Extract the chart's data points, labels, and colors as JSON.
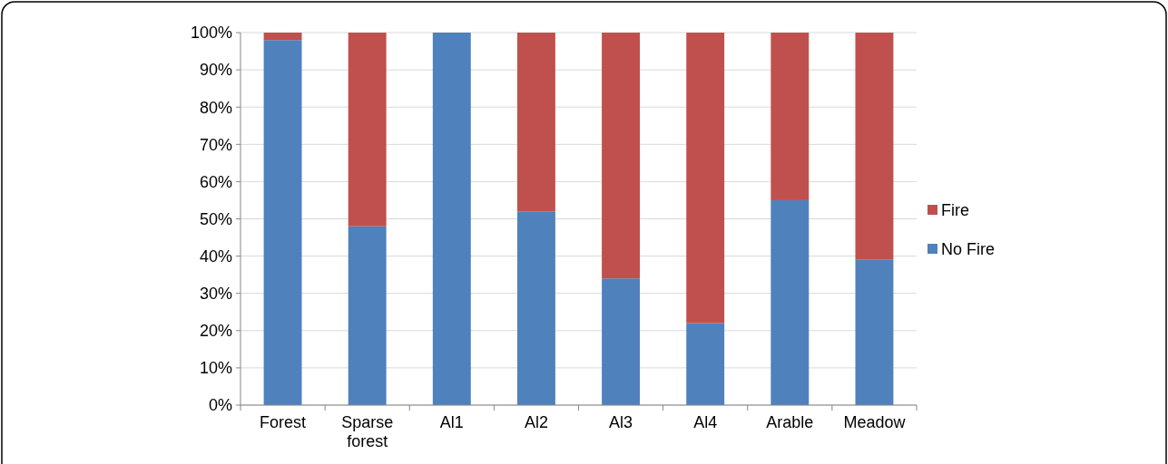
{
  "chart_data": {
    "type": "bar",
    "stacked": true,
    "categories": [
      "Forest",
      "Sparse forest",
      "Al1",
      "Al2",
      "Al3",
      "Al4",
      "Arable",
      "Meadow"
    ],
    "series": [
      {
        "name": "No Fire",
        "color": "#4f81bd",
        "values": [
          98,
          48,
          100,
          52,
          34,
          22,
          55,
          39
        ]
      },
      {
        "name": "Fire",
        "color": "#c0504d",
        "values": [
          2,
          52,
          0,
          48,
          66,
          78,
          45,
          61
        ]
      }
    ],
    "ylim": [
      0,
      100
    ],
    "yticks": [
      {
        "value": 0,
        "label": "0%"
      },
      {
        "value": 10,
        "label": "10%"
      },
      {
        "value": 20,
        "label": "20%"
      },
      {
        "value": 30,
        "label": "30%"
      },
      {
        "value": 40,
        "label": "40%"
      },
      {
        "value": 50,
        "label": "50%"
      },
      {
        "value": 60,
        "label": "60%"
      },
      {
        "value": 70,
        "label": "70%"
      },
      {
        "value": 80,
        "label": "80%"
      },
      {
        "value": 90,
        "label": "90%"
      },
      {
        "value": 100,
        "label": "100%"
      }
    ],
    "grid": "y",
    "legend": "right"
  }
}
